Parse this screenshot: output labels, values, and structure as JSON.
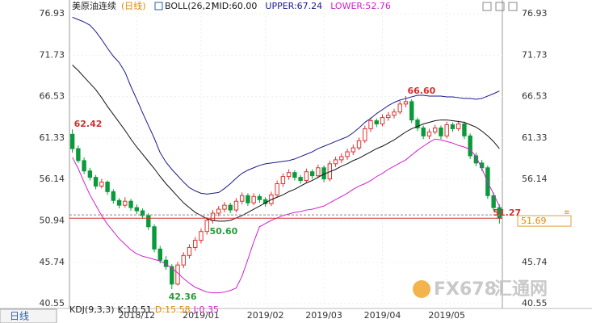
{
  "chart_data": {
    "type": "candlestick",
    "title": "美原油连续",
    "period": "(日线)",
    "indicator": "BOLL(26,2)",
    "categories": [
      null,
      null,
      null,
      null,
      null,
      null,
      null,
      null,
      null,
      null,
      null,
      "2018/12",
      null,
      null,
      null,
      null,
      null,
      null,
      null,
      null,
      null,
      null,
      "2019/01",
      null,
      null,
      null,
      null,
      null,
      null,
      null,
      null,
      null,
      null,
      "2019/02",
      null,
      null,
      null,
      null,
      null,
      null,
      null,
      null,
      null,
      "2019/03",
      null,
      null,
      null,
      null,
      null,
      null,
      null,
      null,
      null,
      "2019/04",
      null,
      null,
      null,
      null,
      null,
      null,
      null,
      null,
      null,
      null,
      "2019/05",
      null,
      null,
      null,
      null,
      null,
      null,
      null,
      null,
      null
    ],
    "open": [
      61.8,
      60.0,
      58.5,
      57.2,
      56.4,
      55.3,
      55.8,
      54.6,
      53.5,
      52.9,
      53.4,
      52.6,
      52.2,
      51.6,
      50.2,
      47.4,
      46.0,
      45.2,
      43.0,
      45.4,
      46.6,
      47.6,
      48.5,
      49.6,
      51.0,
      51.9,
      52.4,
      52.9,
      52.3,
      53.4,
      54.1,
      53.2,
      54.0,
      53.6,
      53.1,
      54.2,
      55.6,
      56.5,
      57.0,
      56.4,
      56.0,
      57.1,
      56.6,
      57.6,
      56.2,
      58.1,
      58.6,
      59.0,
      59.6,
      60.1,
      61.0,
      62.5,
      63.5,
      63.1,
      63.9,
      64.2,
      64.6,
      65.6,
      65.9,
      63.6,
      62.6,
      61.6,
      62.1,
      62.6,
      61.6,
      63.0,
      62.5,
      63.1,
      61.6,
      59.1,
      58.2,
      57.6,
      54.1,
      52.6
    ],
    "high": [
      62.42,
      60.4,
      58.9,
      57.6,
      56.7,
      56.2,
      56.0,
      54.9,
      53.8,
      53.9,
      53.7,
      53.0,
      52.5,
      51.9,
      50.5,
      47.8,
      46.5,
      45.5,
      45.8,
      47.0,
      48.0,
      48.9,
      50.0,
      51.4,
      52.3,
      52.8,
      53.3,
      53.2,
      53.8,
      54.5,
      54.4,
      54.4,
      54.3,
      53.9,
      54.6,
      56.0,
      56.9,
      57.4,
      57.3,
      56.7,
      57.5,
      57.4,
      58.0,
      57.9,
      58.5,
      59.0,
      59.4,
      60.0,
      60.5,
      61.4,
      62.9,
      63.9,
      63.8,
      64.3,
      64.6,
      65.0,
      66.0,
      66.6,
      66.2,
      63.9,
      62.9,
      62.5,
      63.0,
      62.9,
      63.4,
      63.3,
      63.5,
      63.4,
      61.9,
      59.5,
      58.6,
      57.9,
      54.5,
      53.0
    ],
    "low": [
      59.5,
      58.2,
      56.8,
      56.0,
      54.9,
      55.0,
      54.2,
      53.1,
      52.5,
      52.6,
      52.2,
      51.8,
      51.2,
      49.8,
      47.0,
      45.6,
      44.8,
      42.36,
      42.8,
      45.0,
      46.2,
      47.2,
      48.1,
      49.2,
      50.6,
      51.5,
      52.0,
      51.9,
      52.0,
      53.0,
      52.8,
      52.9,
      53.2,
      52.7,
      52.8,
      53.9,
      55.2,
      56.1,
      56.0,
      55.6,
      55.7,
      56.2,
      56.3,
      55.8,
      55.9,
      57.7,
      58.2,
      58.6,
      59.2,
      59.8,
      60.7,
      62.1,
      62.7,
      62.8,
      63.5,
      63.8,
      64.3,
      65.2,
      63.2,
      62.2,
      61.2,
      61.2,
      61.8,
      61.2,
      61.3,
      62.1,
      62.2,
      61.2,
      58.7,
      57.8,
      57.2,
      53.7,
      52.2,
      50.6
    ],
    "close": [
      60.0,
      58.5,
      57.2,
      56.4,
      55.3,
      55.8,
      54.6,
      53.5,
      52.9,
      53.4,
      52.6,
      52.2,
      51.6,
      50.2,
      47.4,
      46.0,
      45.2,
      43.0,
      45.4,
      46.6,
      47.6,
      48.5,
      49.6,
      51.0,
      51.9,
      52.4,
      52.9,
      52.3,
      53.4,
      54.1,
      53.2,
      54.0,
      53.6,
      53.1,
      54.2,
      55.6,
      56.5,
      57.0,
      56.4,
      56.0,
      57.1,
      56.6,
      57.6,
      56.2,
      58.1,
      58.6,
      59.0,
      59.6,
      60.1,
      61.0,
      62.5,
      63.5,
      63.1,
      63.9,
      64.2,
      64.6,
      65.6,
      65.9,
      63.6,
      62.6,
      61.6,
      62.1,
      62.6,
      61.6,
      63.0,
      62.5,
      63.1,
      61.6,
      59.1,
      58.2,
      57.6,
      54.1,
      52.6,
      51.27
    ],
    "up_color": "#e03030",
    "down_color": "#0a9a3a",
    "series": [
      {
        "name": "MID:60.00",
        "color": "#111111",
        "values": [
          70.5,
          69.8,
          69.0,
          68.2,
          67.4,
          66.4,
          65.3,
          64.3,
          63.3,
          62.3,
          61.2,
          60.2,
          59.3,
          58.4,
          57.5,
          56.5,
          55.6,
          54.8,
          54.0,
          53.2,
          52.6,
          52.0,
          51.6,
          51.2,
          51.0,
          50.9,
          50.9,
          51.0,
          51.3,
          51.6,
          52.0,
          52.4,
          52.8,
          53.2,
          53.6,
          53.9,
          54.2,
          54.6,
          54.9,
          55.3,
          55.7,
          56.0,
          56.4,
          56.8,
          57.1,
          57.4,
          57.8,
          58.1,
          58.5,
          58.8,
          59.2,
          59.6,
          60.0,
          60.3,
          60.7,
          61.1,
          61.6,
          62.1,
          62.5,
          62.8,
          63.1,
          63.3,
          63.5,
          63.6,
          63.6,
          63.5,
          63.4,
          63.3,
          63.0,
          62.7,
          62.2,
          61.6,
          60.9,
          60.0
        ]
      },
      {
        "name": "UPPER:67.24",
        "color": "#1a1a8c",
        "values": [
          76.5,
          76.2,
          75.9,
          75.5,
          74.7,
          73.7,
          72.6,
          71.6,
          70.8,
          69.6,
          67.8,
          66.2,
          64.5,
          62.9,
          61.3,
          59.5,
          58.3,
          57.4,
          56.6,
          55.8,
          55.1,
          54.7,
          54.4,
          54.3,
          54.4,
          54.5,
          55.0,
          55.6,
          56.3,
          56.9,
          57.3,
          57.6,
          57.9,
          58.1,
          58.2,
          58.3,
          58.4,
          58.5,
          58.7,
          59.0,
          59.3,
          59.6,
          60.0,
          60.3,
          60.6,
          60.9,
          61.2,
          61.5,
          62.0,
          62.6,
          63.3,
          63.8,
          64.4,
          64.9,
          65.4,
          65.8,
          66.1,
          66.3,
          66.5,
          66.7,
          66.7,
          66.6,
          66.6,
          66.6,
          66.5,
          66.5,
          66.4,
          66.3,
          66.3,
          66.2,
          66.3,
          66.6,
          66.9,
          67.24
        ]
      },
      {
        "name": "LOWER:52.76",
        "color": "#d020d0",
        "values": [
          58.9,
          57.5,
          55.8,
          54.2,
          52.9,
          51.6,
          50.5,
          49.6,
          48.7,
          48.0,
          47.3,
          46.8,
          46.5,
          46.3,
          46.1,
          45.9,
          45.5,
          45.0,
          44.4,
          43.7,
          43.1,
          42.6,
          42.3,
          42.0,
          41.9,
          41.9,
          42.0,
          42.2,
          42.5,
          44.0,
          46.1,
          48.3,
          50.2,
          50.6,
          51.0,
          51.3,
          51.6,
          51.8,
          52.0,
          52.1,
          52.3,
          52.4,
          52.6,
          52.8,
          53.2,
          53.6,
          54.0,
          54.4,
          54.9,
          55.3,
          55.6,
          56.0,
          56.5,
          56.9,
          57.4,
          57.8,
          58.2,
          58.6,
          59.2,
          59.8,
          60.3,
          60.8,
          61.2,
          61.1,
          60.9,
          60.7,
          60.4,
          60.2,
          59.9,
          59.0,
          57.5,
          55.8,
          54.3,
          52.76
        ]
      }
    ],
    "ylim": [
      40.55,
      78.15
    ],
    "yticks": [
      40.55,
      45.74,
      50.94,
      56.14,
      61.33,
      66.53,
      71.73,
      76.93
    ],
    "grid": true,
    "annotations": [
      62.42,
      42.36,
      {
        "value": 66.6,
        "label": "66.60"
      },
      51.27,
      {
        "value": 50.6,
        "label": "50.60"
      }
    ],
    "last_price": 51.69,
    "tab": "日线",
    "kdj": {
      "title": "KDJ(9,3,3)",
      "items": [
        {
          "name": "K:10.51",
          "color": "#111111"
        },
        {
          "name": "D:15.58",
          "color": "#e08a00"
        },
        {
          "name": "J:0.35",
          "color": "#d020d0"
        }
      ]
    },
    "watermark": [
      "FX678",
      "汇通网"
    ]
  }
}
